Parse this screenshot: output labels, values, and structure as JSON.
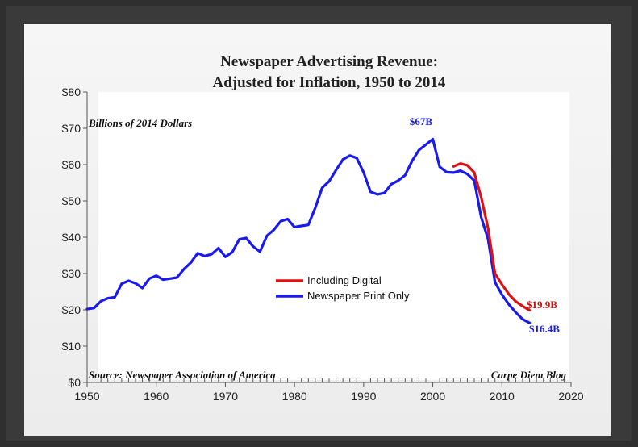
{
  "chart_data": {
    "type": "line",
    "title_line1": "Newspaper Advertising Revenue:",
    "title_line2": "Adjusted for Inflation, 1950 to 2014",
    "unit_note": "Billions of 2014 Dollars",
    "source": "Source: Newspaper Association of America",
    "credit": "Carpe Diem Blog",
    "xlim": [
      1950,
      2020
    ],
    "ylim": [
      0,
      80
    ],
    "x_ticks": [
      1950,
      1960,
      1970,
      1980,
      1990,
      2000,
      2010,
      2020
    ],
    "y_ticks": [
      0,
      10,
      20,
      30,
      40,
      50,
      60,
      70,
      80
    ],
    "y_tick_labels": [
      "$0",
      "$10",
      "$20",
      "$30",
      "$40",
      "$50",
      "$60",
      "$70",
      "$80"
    ],
    "legend": [
      {
        "name": "Including Digital",
        "color": "#dd1111"
      },
      {
        "name": "Newspaper Print Only",
        "color": "#1a1aee"
      }
    ],
    "annotations": {
      "peak": "$67B",
      "end_digital": "$19.9B",
      "end_print": "$16.4B"
    },
    "series": [
      {
        "name": "Newspaper Print Only",
        "color": "#1a1aee",
        "x": [
          1950,
          1951,
          1952,
          1953,
          1954,
          1955,
          1956,
          1957,
          1958,
          1959,
          1960,
          1961,
          1962,
          1963,
          1964,
          1965,
          1966,
          1967,
          1968,
          1969,
          1970,
          1971,
          1972,
          1973,
          1974,
          1975,
          1976,
          1977,
          1978,
          1979,
          1980,
          1981,
          1982,
          1983,
          1984,
          1985,
          1986,
          1987,
          1988,
          1989,
          1990,
          1991,
          1992,
          1993,
          1994,
          1995,
          1996,
          1997,
          1998,
          1999,
          2000,
          2001,
          2002,
          2003,
          2004,
          2005,
          2006,
          2007,
          2008,
          2009,
          2010,
          2011,
          2012,
          2013,
          2014
        ],
        "values": [
          20.2,
          20.5,
          22.4,
          23.2,
          23.5,
          27.2,
          28.0,
          27.3,
          26.0,
          28.6,
          29.4,
          28.3,
          28.6,
          28.9,
          31.2,
          33.0,
          35.6,
          34.8,
          35.3,
          37.0,
          34.6,
          35.9,
          39.4,
          39.8,
          37.5,
          36.0,
          40.4,
          42.0,
          44.4,
          45.0,
          42.8,
          43.1,
          43.4,
          48.1,
          53.6,
          55.4,
          58.5,
          61.4,
          62.5,
          61.8,
          57.8,
          52.5,
          51.8,
          52.2,
          54.6,
          55.6,
          57.1,
          61.0,
          64.0,
          65.5,
          67.0,
          59.4,
          57.9,
          57.8,
          58.3,
          57.4,
          55.6,
          45.5,
          39.5,
          27.6,
          24.2,
          21.5,
          19.3,
          17.4,
          16.4
        ]
      },
      {
        "name": "Including Digital",
        "color": "#dd1111",
        "x": [
          2003,
          2004,
          2005,
          2006,
          2007,
          2008,
          2009,
          2010,
          2011,
          2012,
          2013,
          2014
        ],
        "values": [
          59.5,
          60.3,
          59.8,
          57.8,
          51.0,
          42.5,
          30.0,
          27.0,
          24.3,
          22.3,
          21.0,
          19.9
        ]
      }
    ]
  }
}
